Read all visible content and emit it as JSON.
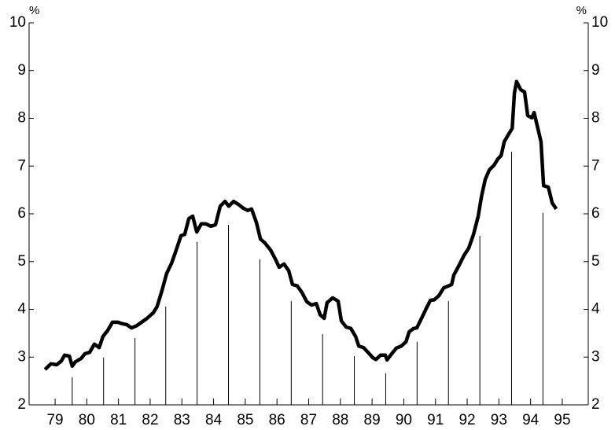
{
  "chart_data": {
    "type": "line",
    "y_unit": "%",
    "xlim": [
      78.68,
      96.32
    ],
    "ylim": [
      2,
      10
    ],
    "yticks": [
      2,
      3,
      4,
      5,
      6,
      7,
      8,
      9,
      10
    ],
    "xticks": [
      {
        "value": 79.5,
        "label": "79"
      },
      {
        "value": 80.5,
        "label": "80"
      },
      {
        "value": 81.5,
        "label": "81"
      },
      {
        "value": 82.5,
        "label": "82"
      },
      {
        "value": 83.5,
        "label": "83"
      },
      {
        "value": 84.5,
        "label": "84"
      },
      {
        "value": 85.5,
        "label": "85"
      },
      {
        "value": 86.5,
        "label": "86"
      },
      {
        "value": 87.5,
        "label": "87"
      },
      {
        "value": 88.5,
        "label": "88"
      },
      {
        "value": 89.5,
        "label": "89"
      },
      {
        "value": 90.5,
        "label": "90"
      },
      {
        "value": 91.5,
        "label": "91"
      },
      {
        "value": 92.5,
        "label": "92"
      },
      {
        "value": 93.5,
        "label": "93"
      },
      {
        "value": 94.5,
        "label": "94"
      },
      {
        "value": 95.5,
        "label": "95"
      }
    ],
    "color": "#000000",
    "x": [
      79.18,
      79.37,
      79.55,
      79.7,
      79.8,
      79.95,
      80.04,
      80.14,
      80.32,
      80.44,
      80.59,
      80.74,
      80.89,
      81.01,
      81.16,
      81.31,
      81.48,
      81.61,
      81.76,
      81.91,
      82.08,
      82.23,
      82.4,
      82.6,
      82.72,
      82.87,
      83.02,
      83.17,
      83.32,
      83.47,
      83.59,
      83.72,
      83.84,
      83.97,
      84.11,
      84.26,
      84.41,
      84.56,
      84.71,
      84.86,
      84.98,
      85.13,
      85.28,
      85.43,
      85.58,
      85.7,
      85.85,
      85.98,
      86.12,
      86.3,
      86.45,
      86.57,
      86.72,
      86.87,
      86.99,
      87.14,
      87.29,
      87.44,
      87.59,
      87.74,
      87.86,
      87.99,
      88.08,
      88.26,
      88.43,
      88.53,
      88.68,
      88.83,
      88.98,
      89.08,
      89.23,
      89.37,
      89.52,
      89.62,
      89.77,
      89.92,
      89.97,
      90.12,
      90.27,
      90.42,
      90.57,
      90.67,
      90.81,
      90.91,
      91.06,
      91.21,
      91.34,
      91.46,
      91.61,
      91.76,
      91.91,
      92.01,
      92.08,
      92.25,
      92.4,
      92.55,
      92.7,
      92.85,
      92.95,
      93.07,
      93.2,
      93.35,
      93.47,
      93.57,
      93.67,
      93.82,
      93.92,
      93.99,
      94.06,
      94.19,
      94.31,
      94.41,
      94.54,
      94.61,
      94.73,
      94.83,
      94.91,
      95.06,
      95.18,
      95.31
    ],
    "values": [
      2.74,
      2.86,
      2.84,
      2.92,
      3.04,
      3.02,
      2.81,
      2.9,
      2.97,
      3.07,
      3.1,
      3.27,
      3.2,
      3.43,
      3.56,
      3.73,
      3.73,
      3.7,
      3.68,
      3.61,
      3.66,
      3.73,
      3.81,
      3.93,
      4.06,
      4.39,
      4.75,
      4.96,
      5.24,
      5.54,
      5.57,
      5.9,
      5.95,
      5.62,
      5.79,
      5.79,
      5.74,
      5.77,
      6.16,
      6.26,
      6.16,
      6.26,
      6.2,
      6.12,
      6.07,
      6.1,
      5.82,
      5.47,
      5.39,
      5.24,
      5.05,
      4.88,
      4.95,
      4.81,
      4.52,
      4.49,
      4.35,
      4.16,
      4.09,
      4.12,
      3.89,
      3.81,
      4.14,
      4.24,
      4.17,
      3.76,
      3.63,
      3.6,
      3.43,
      3.23,
      3.2,
      3.1,
      2.99,
      2.95,
      3.04,
      3.04,
      2.94,
      3.07,
      3.19,
      3.23,
      3.32,
      3.53,
      3.6,
      3.61,
      3.81,
      4.02,
      4.19,
      4.2,
      4.29,
      4.45,
      4.49,
      4.52,
      4.72,
      4.93,
      5.13,
      5.28,
      5.57,
      5.95,
      6.36,
      6.72,
      6.92,
      7.02,
      7.15,
      7.22,
      7.51,
      7.68,
      7.79,
      8.53,
      8.77,
      8.6,
      8.55,
      8.06,
      8.01,
      8.12,
      7.79,
      7.51,
      6.59,
      6.56,
      6.23,
      6.1
    ],
    "drop_lines": {
      "x": [
        80.04,
        81.03,
        82.02,
        82.99,
        83.98,
        84.97,
        85.96,
        86.95,
        87.94,
        88.94,
        89.93,
        90.92,
        91.91,
        92.9,
        93.9,
        94.89
      ],
      "values": [
        2.58,
        2.99,
        3.4,
        4.06,
        5.41,
        5.77,
        5.05,
        4.17,
        3.48,
        3.02,
        2.66,
        3.32,
        4.17,
        5.54,
        7.3,
        6.02
      ]
    }
  }
}
